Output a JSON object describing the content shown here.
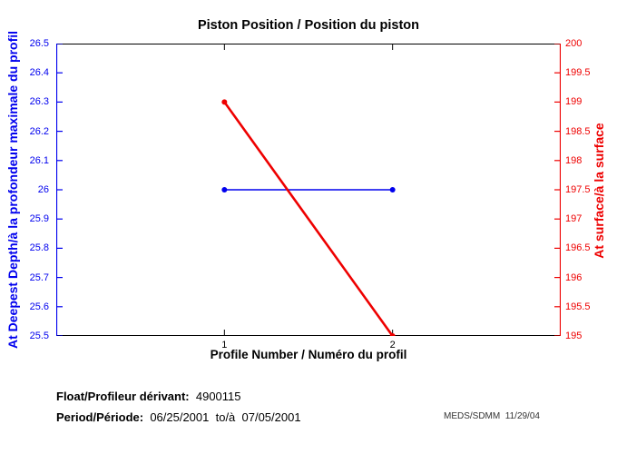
{
  "title": "Piston Position / Position du piston",
  "colors": {
    "left_axis": "#0000EE",
    "right_axis": "#EE0000",
    "frame": "#000000",
    "credit_text": "#333333"
  },
  "chart_data": {
    "type": "line",
    "title": "Piston Position / Position du piston",
    "xlabel": "Profile Number / Numéro du profil",
    "xlim": [
      0,
      3
    ],
    "x_tick_labels": [
      "1",
      "2"
    ],
    "x_tick_values": [
      1,
      2
    ],
    "grid": false,
    "left_axis": {
      "label": "At Deepest Depth/à la profondeur maximale du profil",
      "lim": [
        25.5,
        26.5
      ],
      "tick_labels": [
        "25.5",
        "25.6",
        "25.7",
        "25.8",
        "25.9",
        "26",
        "26.1",
        "26.2",
        "26.3",
        "26.4",
        "26.5"
      ],
      "tick_values": [
        25.5,
        25.6,
        25.7,
        25.8,
        25.9,
        26,
        26.1,
        26.2,
        26.3,
        26.4,
        26.5
      ],
      "color": "#0000EE"
    },
    "right_axis": {
      "label": "At surface/à la surface",
      "lim": [
        195,
        200
      ],
      "tick_labels": [
        "195",
        "195.5",
        "196",
        "196.5",
        "197",
        "197.5",
        "198",
        "198.5",
        "199",
        "199.5",
        "200"
      ],
      "tick_values": [
        195,
        195.5,
        196,
        196.5,
        197,
        197.5,
        198,
        198.5,
        199,
        199.5,
        200
      ],
      "color": "#EE0000"
    },
    "series": [
      {
        "name": "At Deepest Depth / à la profondeur maximale du profil",
        "axis": "left",
        "x": [
          1,
          2
        ],
        "values": [
          26,
          26
        ],
        "color": "#0000EE",
        "line_width": 1.4,
        "marker": "circle",
        "marker_size": 3
      },
      {
        "name": "At surface / à la surface",
        "axis": "right",
        "x": [
          1,
          2
        ],
        "values": [
          199,
          195
        ],
        "color": "#EE0000",
        "line_width": 2.6,
        "marker": "circle",
        "marker_size": 3
      }
    ]
  },
  "footer": {
    "float_label": "Float/Profileur dérivant:",
    "float_value": "4900115",
    "period_label": "Period/Période:",
    "period_value": "06/25/2001  to/à  07/05/2001",
    "credit": "MEDS/SDMM  11/29/04"
  }
}
